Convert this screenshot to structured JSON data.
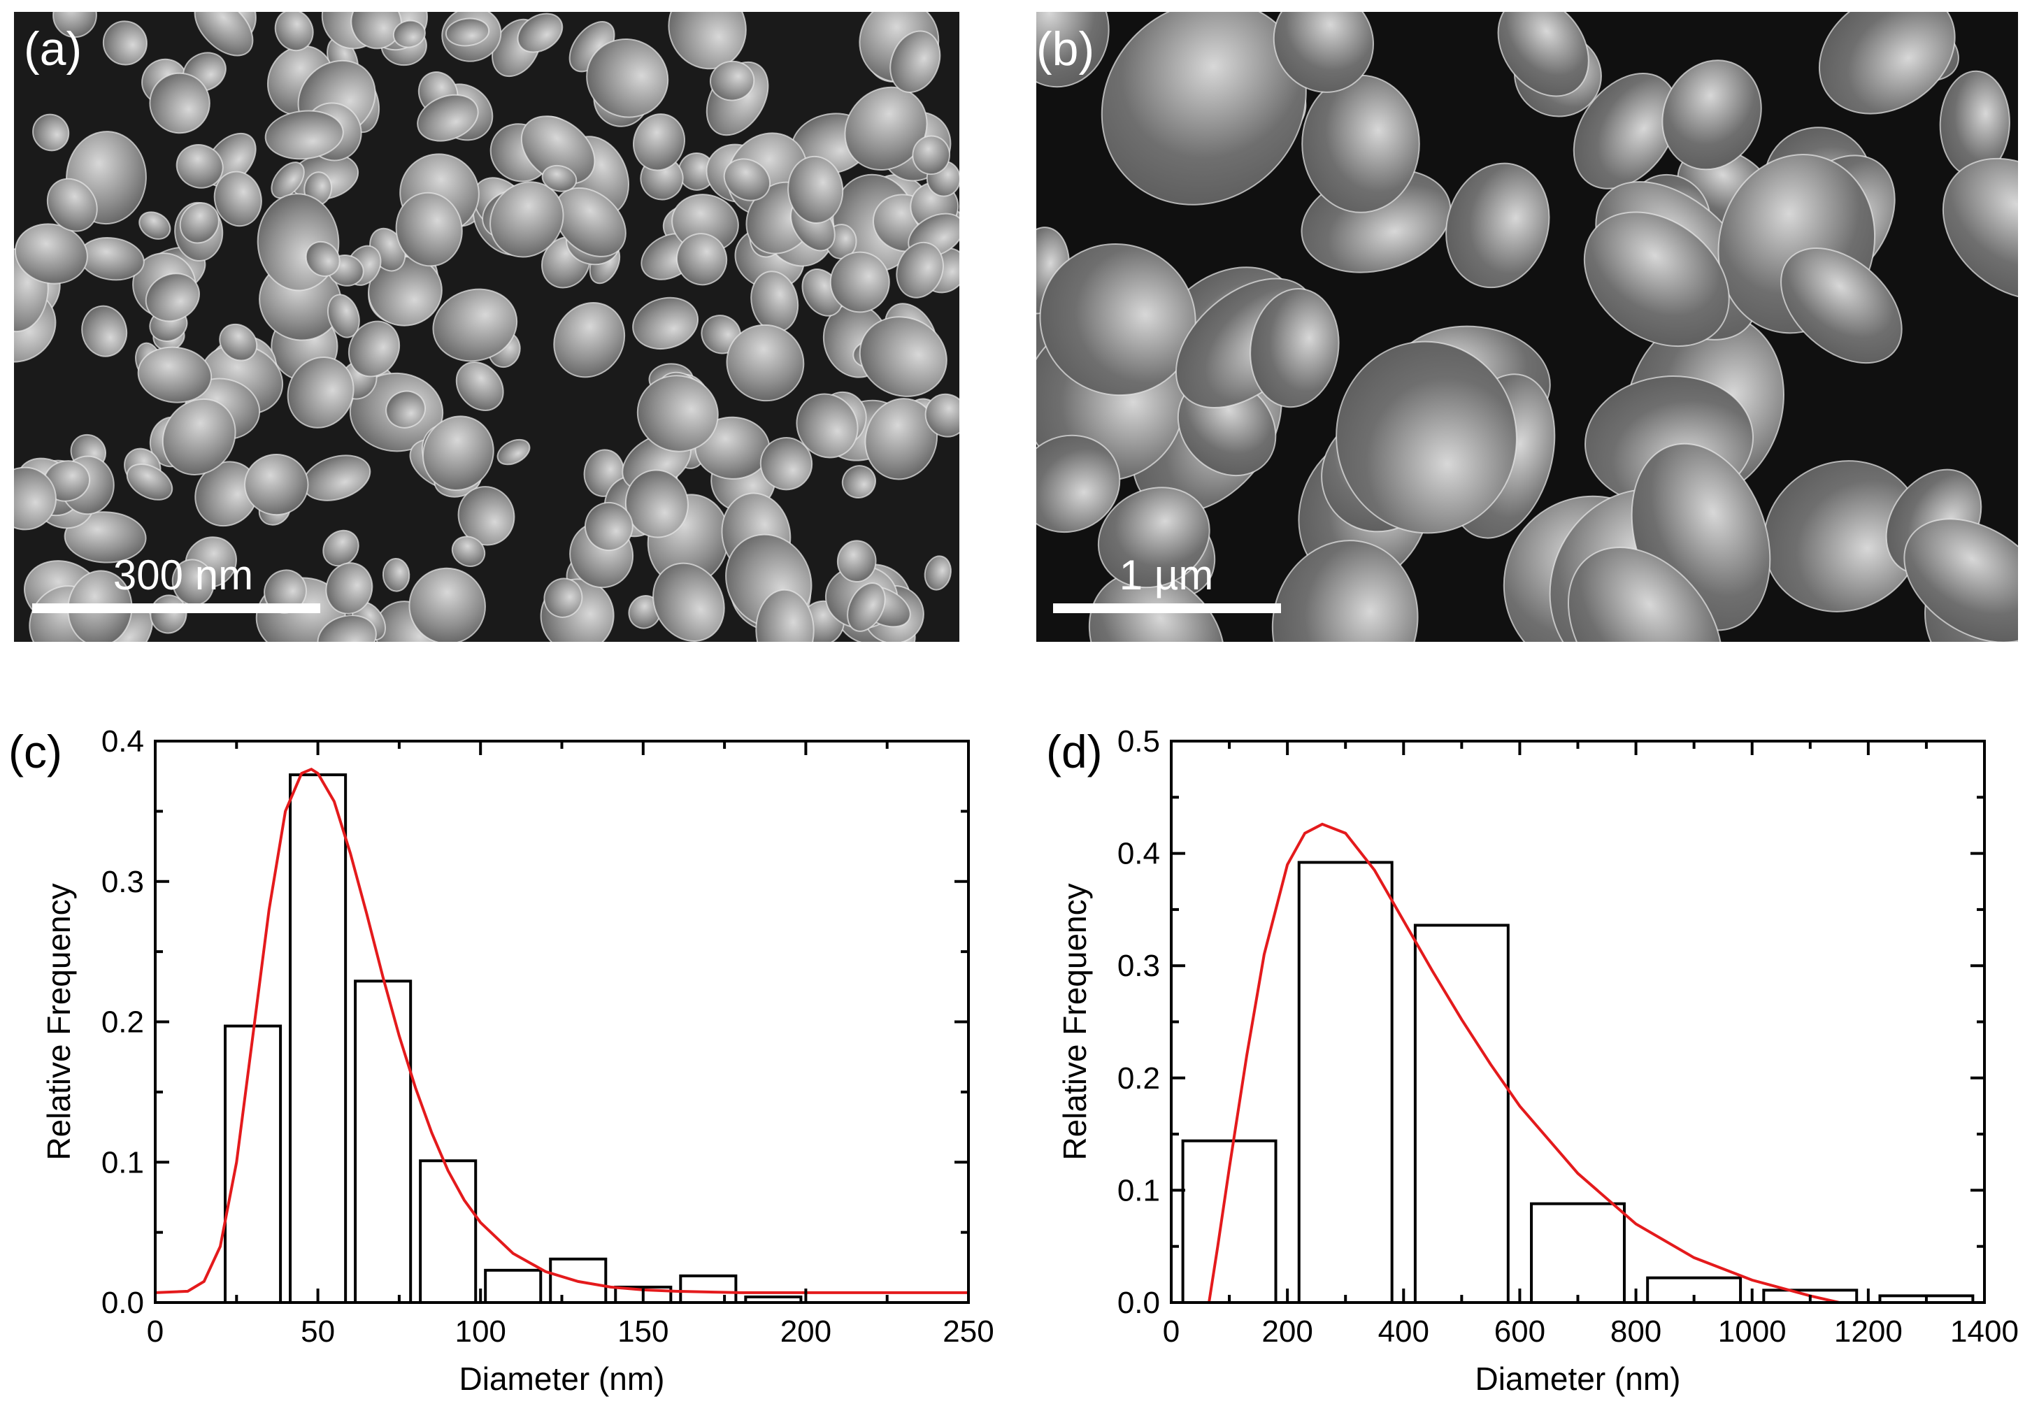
{
  "panels": {
    "a": {
      "label": "(a)",
      "scale_bar": "300 nm"
    },
    "b": {
      "label": "(b)",
      "scale_bar": "1 µm"
    },
    "c": {
      "label": "(c)"
    },
    "d": {
      "label": "(d)"
    }
  },
  "colors": {
    "histogram_edge": "#000000",
    "fit_curve": "#e41a1c",
    "sem_background": "#1a1a1a",
    "grain": "#8f8f8f"
  },
  "chart_data": [
    {
      "id": "c",
      "type": "bar",
      "xlabel": "Diameter (nm)",
      "ylabel": "Relative Frequency",
      "xlim": [
        0,
        250
      ],
      "ylim": [
        0,
        0.4
      ],
      "x_ticks": [
        "0",
        "50",
        "100",
        "150",
        "200",
        "250"
      ],
      "y_ticks": [
        "0.0",
        "0.1",
        "0.2",
        "0.3",
        "0.4"
      ],
      "bin_width": 17,
      "bins": [
        30,
        50,
        70,
        90,
        110,
        130,
        150,
        170,
        190
      ],
      "values": [
        0.197,
        0.376,
        0.229,
        0.101,
        0.023,
        0.031,
        0.011,
        0.019,
        0.004
      ],
      "fit": {
        "type": "line",
        "x": [
          0,
          10,
          15,
          20,
          25,
          30,
          35,
          40,
          45,
          48,
          50,
          55,
          60,
          65,
          70,
          75,
          80,
          85,
          90,
          95,
          100,
          110,
          120,
          130,
          140,
          150,
          160,
          180,
          200,
          250
        ],
        "y": [
          0.007,
          0.008,
          0.015,
          0.04,
          0.1,
          0.19,
          0.28,
          0.35,
          0.377,
          0.38,
          0.377,
          0.357,
          0.32,
          0.277,
          0.232,
          0.19,
          0.153,
          0.121,
          0.094,
          0.073,
          0.057,
          0.035,
          0.022,
          0.015,
          0.011,
          0.009,
          0.008,
          0.007,
          0.007,
          0.007
        ]
      }
    },
    {
      "id": "d",
      "type": "bar",
      "xlabel": "Diameter (nm)",
      "ylabel": "Relative Frequency",
      "xlim": [
        0,
        1400
      ],
      "ylim": [
        0,
        0.5
      ],
      "x_ticks": [
        "0",
        "200",
        "400",
        "600",
        "800",
        "1000",
        "1200",
        "1400"
      ],
      "y_ticks": [
        "0.0",
        "0.1",
        "0.2",
        "0.3",
        "0.4",
        "0.5"
      ],
      "bin_width": 160,
      "bins": [
        100,
        300,
        500,
        700,
        900,
        1100,
        1300
      ],
      "values": [
        0.144,
        0.392,
        0.336,
        0.088,
        0.022,
        0.011,
        0.006
      ],
      "fit": {
        "type": "line",
        "x": [
          65,
          80,
          100,
          130,
          160,
          200,
          230,
          260,
          300,
          350,
          400,
          450,
          500,
          550,
          600,
          700,
          800,
          900,
          1000,
          1100,
          1150
        ],
        "y": [
          0.0,
          0.05,
          0.12,
          0.22,
          0.31,
          0.39,
          0.418,
          0.426,
          0.418,
          0.385,
          0.34,
          0.295,
          0.252,
          0.212,
          0.175,
          0.115,
          0.07,
          0.04,
          0.02,
          0.006,
          0.0
        ]
      }
    }
  ]
}
